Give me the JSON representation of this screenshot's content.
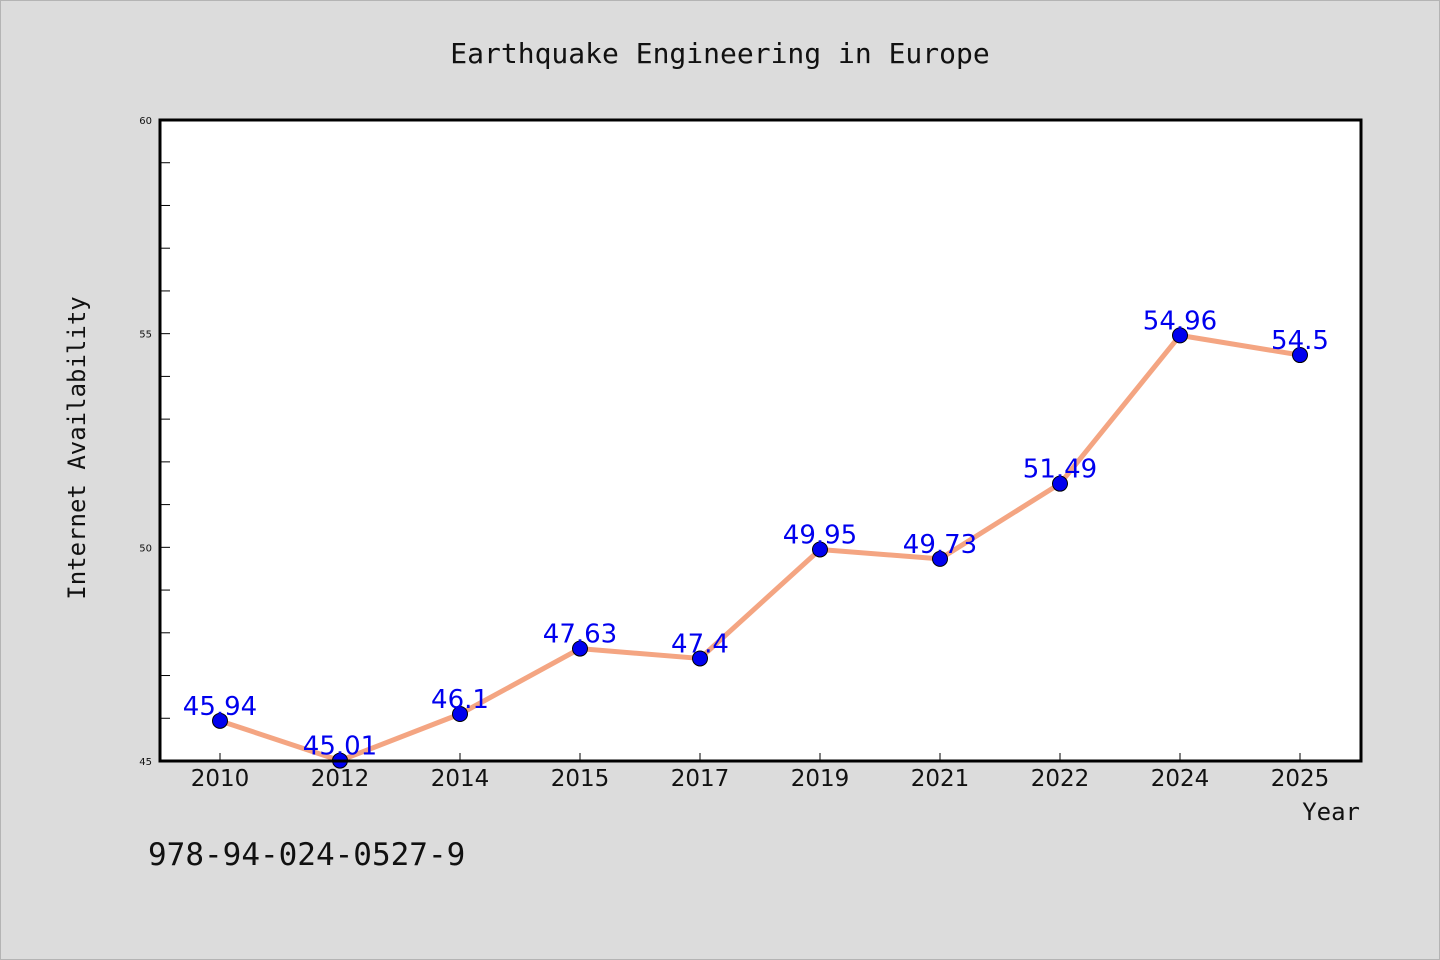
{
  "chart_data": {
    "type": "line",
    "title": "Earthquake Engineering in Europe",
    "xlabel": "Year",
    "ylabel": "Internet Availability",
    "categories": [
      "2010",
      "2012",
      "2014",
      "2015",
      "2017",
      "2019",
      "2021",
      "2022",
      "2024",
      "2025"
    ],
    "series": [
      {
        "values": [
          45.94,
          45.01,
          46.1,
          47.63,
          47.4,
          49.95,
          49.73,
          51.49,
          54.96,
          54.5
        ],
        "data_labels": [
          "45.94",
          "45.01",
          "46.1",
          "47.63",
          "47.4",
          "49.95",
          "49.73",
          "51.49",
          "54.96",
          "54.5"
        ],
        "line_color": "#f4a582",
        "marker_color": "#0000ee",
        "label_color": "#0000ee"
      }
    ],
    "ylim": [
      45,
      60
    ],
    "yticks": [
      "45",
      "50",
      "55",
      "60"
    ],
    "y_minor_step": 1,
    "grid": false,
    "legend": "none"
  },
  "footer": {
    "isbn": "978-94-024-0527-9"
  },
  "colors": {
    "background": "#dcdcdc",
    "plot_background": "#ffffff",
    "axis": "#000000"
  }
}
